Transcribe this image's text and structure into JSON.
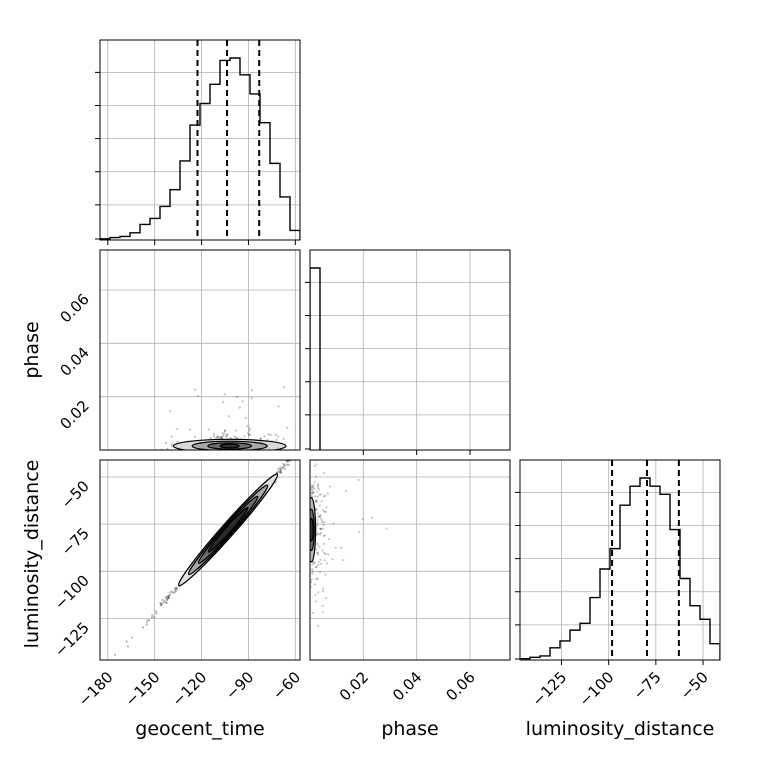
{
  "chart_data": {
    "type": "corner",
    "parameters": [
      "geocent_time",
      "phase",
      "luminosity_distance"
    ],
    "axis_labels": {
      "geocent_time": "geocent_time",
      "phase": "phase",
      "luminosity_distance": "luminosity_distance"
    },
    "ranges": {
      "geocent_time": [
        -185,
        -57
      ],
      "phase": [
        0.0,
        0.075
      ],
      "luminosity_distance": [
        -147,
        -41
      ]
    },
    "ticks": {
      "geocent_time": [
        -180,
        -150,
        -120,
        -90,
        -60
      ],
      "phase": [
        0.02,
        0.04,
        0.06
      ],
      "luminosity_distance": [
        -125,
        -100,
        -75,
        -50
      ]
    },
    "tick_labels": {
      "geocent_time": [
        "−180",
        "−150",
        "−120",
        "−90",
        "−60"
      ],
      "phase": [
        "0.02",
        "0.04",
        "0.06"
      ],
      "luminosity_distance": [
        "−125",
        "−100",
        "−75",
        "−50"
      ]
    },
    "grid": true,
    "histograms": {
      "geocent_time": {
        "bin_edges": [
          -185,
          -178.6,
          -172.2,
          -165.8,
          -159.4,
          -153,
          -146.6,
          -140.2,
          -133.8,
          -127.4,
          -121,
          -114.6,
          -108.2,
          -101.8,
          -95.4,
          -89,
          -82.6,
          -76.2,
          -69.8,
          -63.4,
          -57
        ],
        "counts": [
          1,
          2,
          3,
          6,
          13,
          18,
          28,
          42,
          66,
          96,
          114,
          130,
          150,
          152,
          138,
          122,
          98,
          64,
          36,
          8
        ],
        "quantiles": [
          -122.6,
          -103.7,
          -83.1
        ]
      },
      "phase": {
        "bin_edges": [
          0.0,
          0.00375
        ],
        "counts": [
          1
        ],
        "quantiles": []
      },
      "luminosity_distance": {
        "bin_edges": [
          -147,
          -141.7,
          -136.4,
          -131.1,
          -125.8,
          -120.5,
          -115.2,
          -109.9,
          -104.6,
          -99.3,
          -94,
          -88.7,
          -83.4,
          -78.1,
          -72.8,
          -67.5,
          -62.2,
          -56.9,
          -51.6,
          -46.3,
          -41
        ],
        "counts": [
          1,
          2,
          3,
          9,
          14,
          22,
          27,
          46,
          67,
          82,
          114,
          128,
          134,
          128,
          122,
          96,
          60,
          40,
          30,
          12
        ],
        "quantiles": [
          -98.2,
          -79.7,
          -62.8
        ]
      }
    },
    "contours_2d": {
      "phase_vs_geocent_time": {
        "center": [
          -102,
          0.0015
        ],
        "levels_halfwidth": [
          [
            36,
            0.0025
          ],
          [
            24,
            0.0018
          ],
          [
            14,
            0.0012
          ],
          [
            6,
            0.0007
          ]
        ]
      },
      "luminosity_distance_vs_geocent_time": {
        "line_start": [
          -135,
          -108
        ],
        "line_end": [
          -72,
          -49
        ],
        "center": [
          -103,
          -78
        ],
        "levels_halfwidth": [
          0.5,
          0.38,
          0.25,
          0.12
        ]
      },
      "luminosity_distance_vs_phase": {
        "center": [
          0.0005,
          -78
        ],
        "levels_halfwidth": [
          [
            0.0016,
            17
          ],
          [
            0.0011,
            11
          ],
          [
            0.0007,
            6
          ]
        ]
      }
    }
  }
}
